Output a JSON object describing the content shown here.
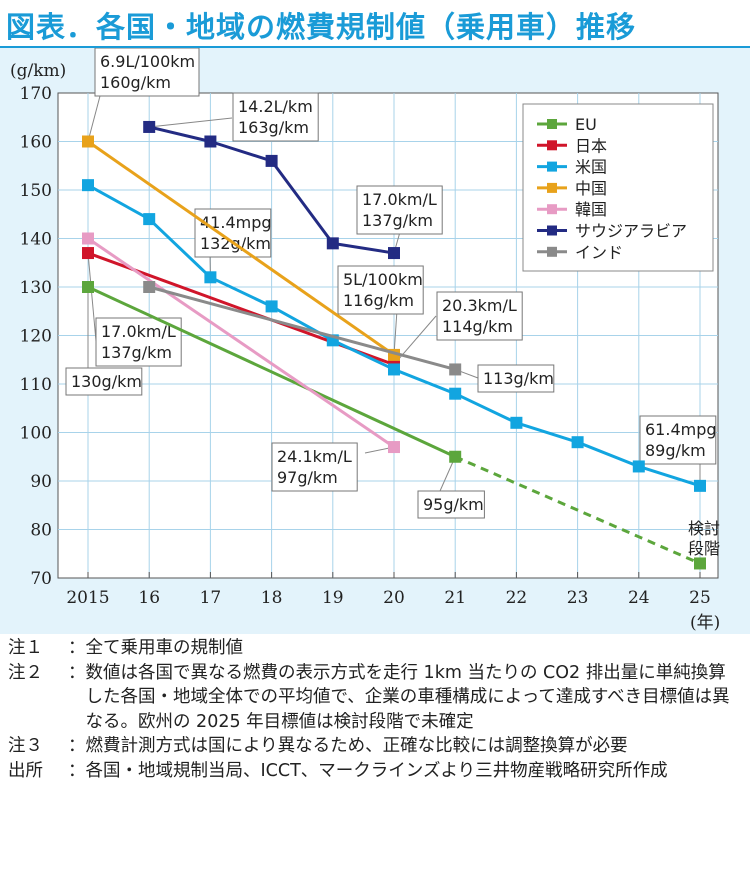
{
  "title": "図表．各国・地域の燃費規制値（乗用車）推移",
  "chart_data": {
    "type": "line",
    "unit_label": "(g/km)",
    "x_unit_label": "(年)",
    "x": [
      2015,
      2016,
      2017,
      2018,
      2019,
      2020,
      2021,
      2022,
      2023,
      2024,
      2025
    ],
    "x_tick_labels": [
      "2015",
      "16",
      "17",
      "18",
      "19",
      "20",
      "21",
      "22",
      "23",
      "24",
      "25"
    ],
    "ylim": [
      70,
      170
    ],
    "y_ticks": [
      70,
      80,
      90,
      100,
      110,
      120,
      130,
      140,
      150,
      160,
      170
    ],
    "grid": true,
    "legend_position": "top-right",
    "series": [
      {
        "name": "EU",
        "color": "#5ca63c",
        "points": [
          [
            2015,
            130
          ],
          [
            2021,
            95
          ]
        ],
        "dashed_points": [
          [
            2021,
            95
          ],
          [
            2025,
            73
          ]
        ]
      },
      {
        "name": "日本",
        "color": "#d0152a",
        "points": [
          [
            2015,
            137
          ],
          [
            2020,
            114
          ]
        ]
      },
      {
        "name": "米国",
        "color": "#12a5e0",
        "points": [
          [
            2015,
            151
          ],
          [
            2016,
            144
          ],
          [
            2017,
            132
          ],
          [
            2018,
            126
          ],
          [
            2019,
            119
          ],
          [
            2020,
            113
          ],
          [
            2021,
            108
          ],
          [
            2022,
            102
          ],
          [
            2023,
            98
          ],
          [
            2024,
            93
          ],
          [
            2025,
            89
          ]
        ]
      },
      {
        "name": "中国",
        "color": "#e8a21b",
        "points": [
          [
            2015,
            160
          ],
          [
            2020,
            116
          ]
        ]
      },
      {
        "name": "韓国",
        "color": "#e79bc4",
        "points": [
          [
            2015,
            140
          ],
          [
            2020,
            97
          ]
        ]
      },
      {
        "name": "サウジアラビア",
        "color": "#232b83",
        "points": [
          [
            2016,
            163
          ],
          [
            2017,
            160
          ],
          [
            2018,
            156
          ],
          [
            2019,
            139
          ],
          [
            2020,
            137
          ]
        ]
      },
      {
        "name": "インド",
        "color": "#8a8a8a",
        "points": [
          [
            2016,
            130
          ],
          [
            2021,
            113
          ]
        ]
      }
    ],
    "annotations": [
      {
        "lines": [
          "6.9L/100km",
          "160g/km"
        ],
        "x": 2015,
        "y": 160
      },
      {
        "lines": [
          "14.2L/km",
          "163g/km"
        ],
        "x": 2016,
        "y": 163
      },
      {
        "lines": [
          "41.4mpg",
          "132g/km"
        ],
        "x": 2017,
        "y": 132
      },
      {
        "lines": [
          "17.0km/L",
          "137g/km"
        ],
        "x": 2020,
        "y": 137
      },
      {
        "lines": [
          "5L/100km",
          "116g/km"
        ],
        "x": 2020,
        "y": 116
      },
      {
        "lines": [
          "20.3km/L",
          "114g/km"
        ],
        "x": 2020,
        "y": 114
      },
      {
        "lines": [
          "17.0km/L",
          "137g/km"
        ],
        "x": 2015,
        "y": 137
      },
      {
        "lines": [
          "130g/km"
        ],
        "x": 2015,
        "y": 130
      },
      {
        "lines": [
          "113g/km"
        ],
        "x": 2021,
        "y": 113
      },
      {
        "lines": [
          "24.1km/L",
          "97g/km"
        ],
        "x": 2020,
        "y": 97
      },
      {
        "lines": [
          "95g/km"
        ],
        "x": 2021,
        "y": 95
      },
      {
        "lines": [
          "61.4mpg",
          "89g/km"
        ],
        "x": 2025,
        "y": 89
      },
      {
        "lines": [
          "検討",
          "段階"
        ],
        "x": 2025,
        "y": 73
      }
    ]
  },
  "notes": [
    {
      "label": "注１",
      "sep": "：",
      "text": "全て乗用車の規制値"
    },
    {
      "label": "注２",
      "sep": "：",
      "text": "数値は各国で異なる燃費の表示方式を走行 1km 当たりの CO2 排出量に単純換算した各国・地域全体での平均値で、企業の車種構成によって達成すべき目標値は異なる。欧州の 2025 年目標値は検討段階で未確定"
    },
    {
      "label": "注３",
      "sep": "：",
      "text": "燃費計測方式は国により異なるため、正確な比較には調整換算が必要"
    },
    {
      "label": "出所",
      "sep": "：",
      "text": "各国・地域規制当局、ICCT、マークラインズより三井物産戦略研究所作成"
    }
  ]
}
